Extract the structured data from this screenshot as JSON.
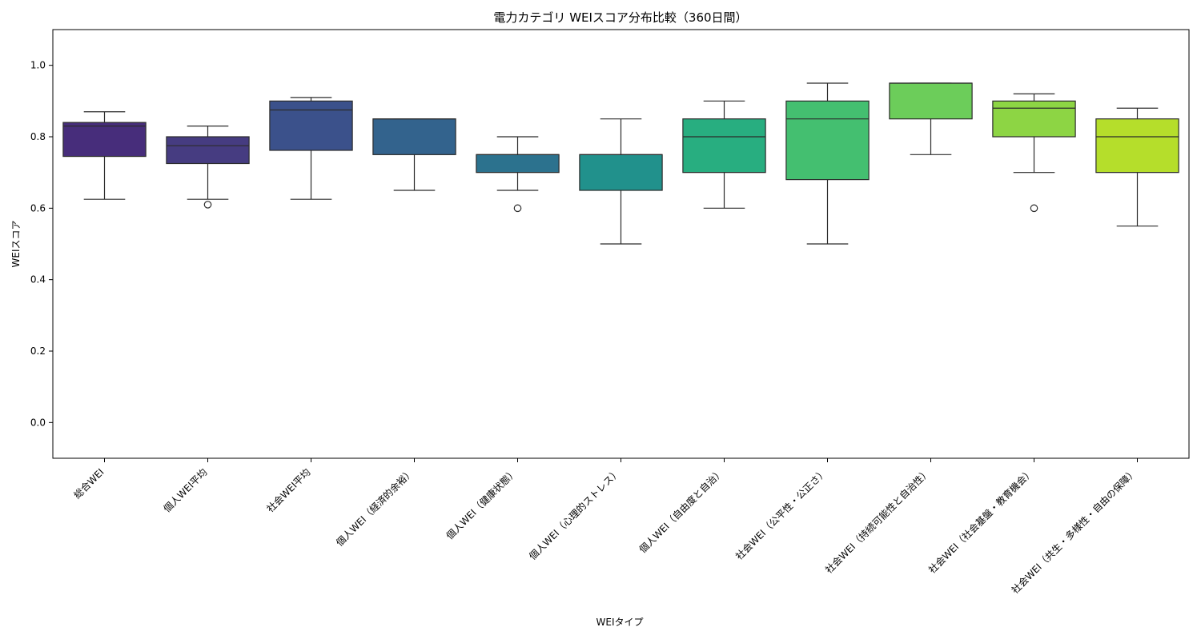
{
  "chart_data": {
    "type": "box",
    "title": "電力カテゴリ WEIスコア分布比較（360日間）",
    "xlabel": "WEIタイプ",
    "ylabel": "WEIスコア",
    "ylim": [
      -0.1,
      1.1
    ],
    "yticks": [
      0.0,
      0.2,
      0.4,
      0.6,
      0.8,
      1.0
    ],
    "ytick_labels": [
      "0.0",
      "0.2",
      "0.4",
      "0.6",
      "0.8",
      "1.0"
    ],
    "grid": false,
    "legend": "none",
    "palette": [
      "#472d7b",
      "#463c81",
      "#3b518b",
      "#33638d",
      "#2c728e",
      "#21918c",
      "#28ae80",
      "#44bf70",
      "#6ccd5a",
      "#8dd544",
      "#b5de2b"
    ],
    "categories": [
      "総合WEI",
      "個人WEI平均",
      "社会WEI平均",
      "個人WEI（経済的余裕）",
      "個人WEI（健康状態）",
      "個人WEI（心理的ストレス）",
      "個人WEI（自由度と自治）",
      "社会WEI（公平性・公正さ）",
      "社会WEI（持続可能性と自治性）",
      "社会WEI（社会基盤・教育機会）",
      "社会WEI（共生・多様性・自由の保障）"
    ],
    "boxes": [
      {
        "whisker_low": 0.625,
        "q1": 0.745,
        "median": 0.83,
        "q3": 0.84,
        "whisker_high": 0.87,
        "outliers": []
      },
      {
        "whisker_low": 0.625,
        "q1": 0.725,
        "median": 0.775,
        "q3": 0.8,
        "whisker_high": 0.83,
        "outliers": [
          0.61
        ]
      },
      {
        "whisker_low": 0.625,
        "q1": 0.762,
        "median": 0.875,
        "q3": 0.9,
        "whisker_high": 0.91,
        "outliers": []
      },
      {
        "whisker_low": 0.65,
        "q1": 0.75,
        "median": 0.85,
        "q3": 0.85,
        "whisker_high": 0.85,
        "outliers": []
      },
      {
        "whisker_low": 0.65,
        "q1": 0.7,
        "median": 0.75,
        "q3": 0.75,
        "whisker_high": 0.8,
        "outliers": [
          0.6
        ]
      },
      {
        "whisker_low": 0.5,
        "q1": 0.65,
        "median": 0.75,
        "q3": 0.75,
        "whisker_high": 0.85,
        "outliers": []
      },
      {
        "whisker_low": 0.6,
        "q1": 0.7,
        "median": 0.8,
        "q3": 0.85,
        "whisker_high": 0.9,
        "outliers": []
      },
      {
        "whisker_low": 0.5,
        "q1": 0.68,
        "median": 0.85,
        "q3": 0.9,
        "whisker_high": 0.95,
        "outliers": []
      },
      {
        "whisker_low": 0.75,
        "q1": 0.85,
        "median": 0.95,
        "q3": 0.95,
        "whisker_high": 0.95,
        "outliers": []
      },
      {
        "whisker_low": 0.7,
        "q1": 0.8,
        "median": 0.88,
        "q3": 0.9,
        "whisker_high": 0.92,
        "outliers": [
          0.6
        ]
      },
      {
        "whisker_low": 0.55,
        "q1": 0.7,
        "median": 0.8,
        "q3": 0.85,
        "whisker_high": 0.88,
        "outliers": []
      }
    ]
  }
}
